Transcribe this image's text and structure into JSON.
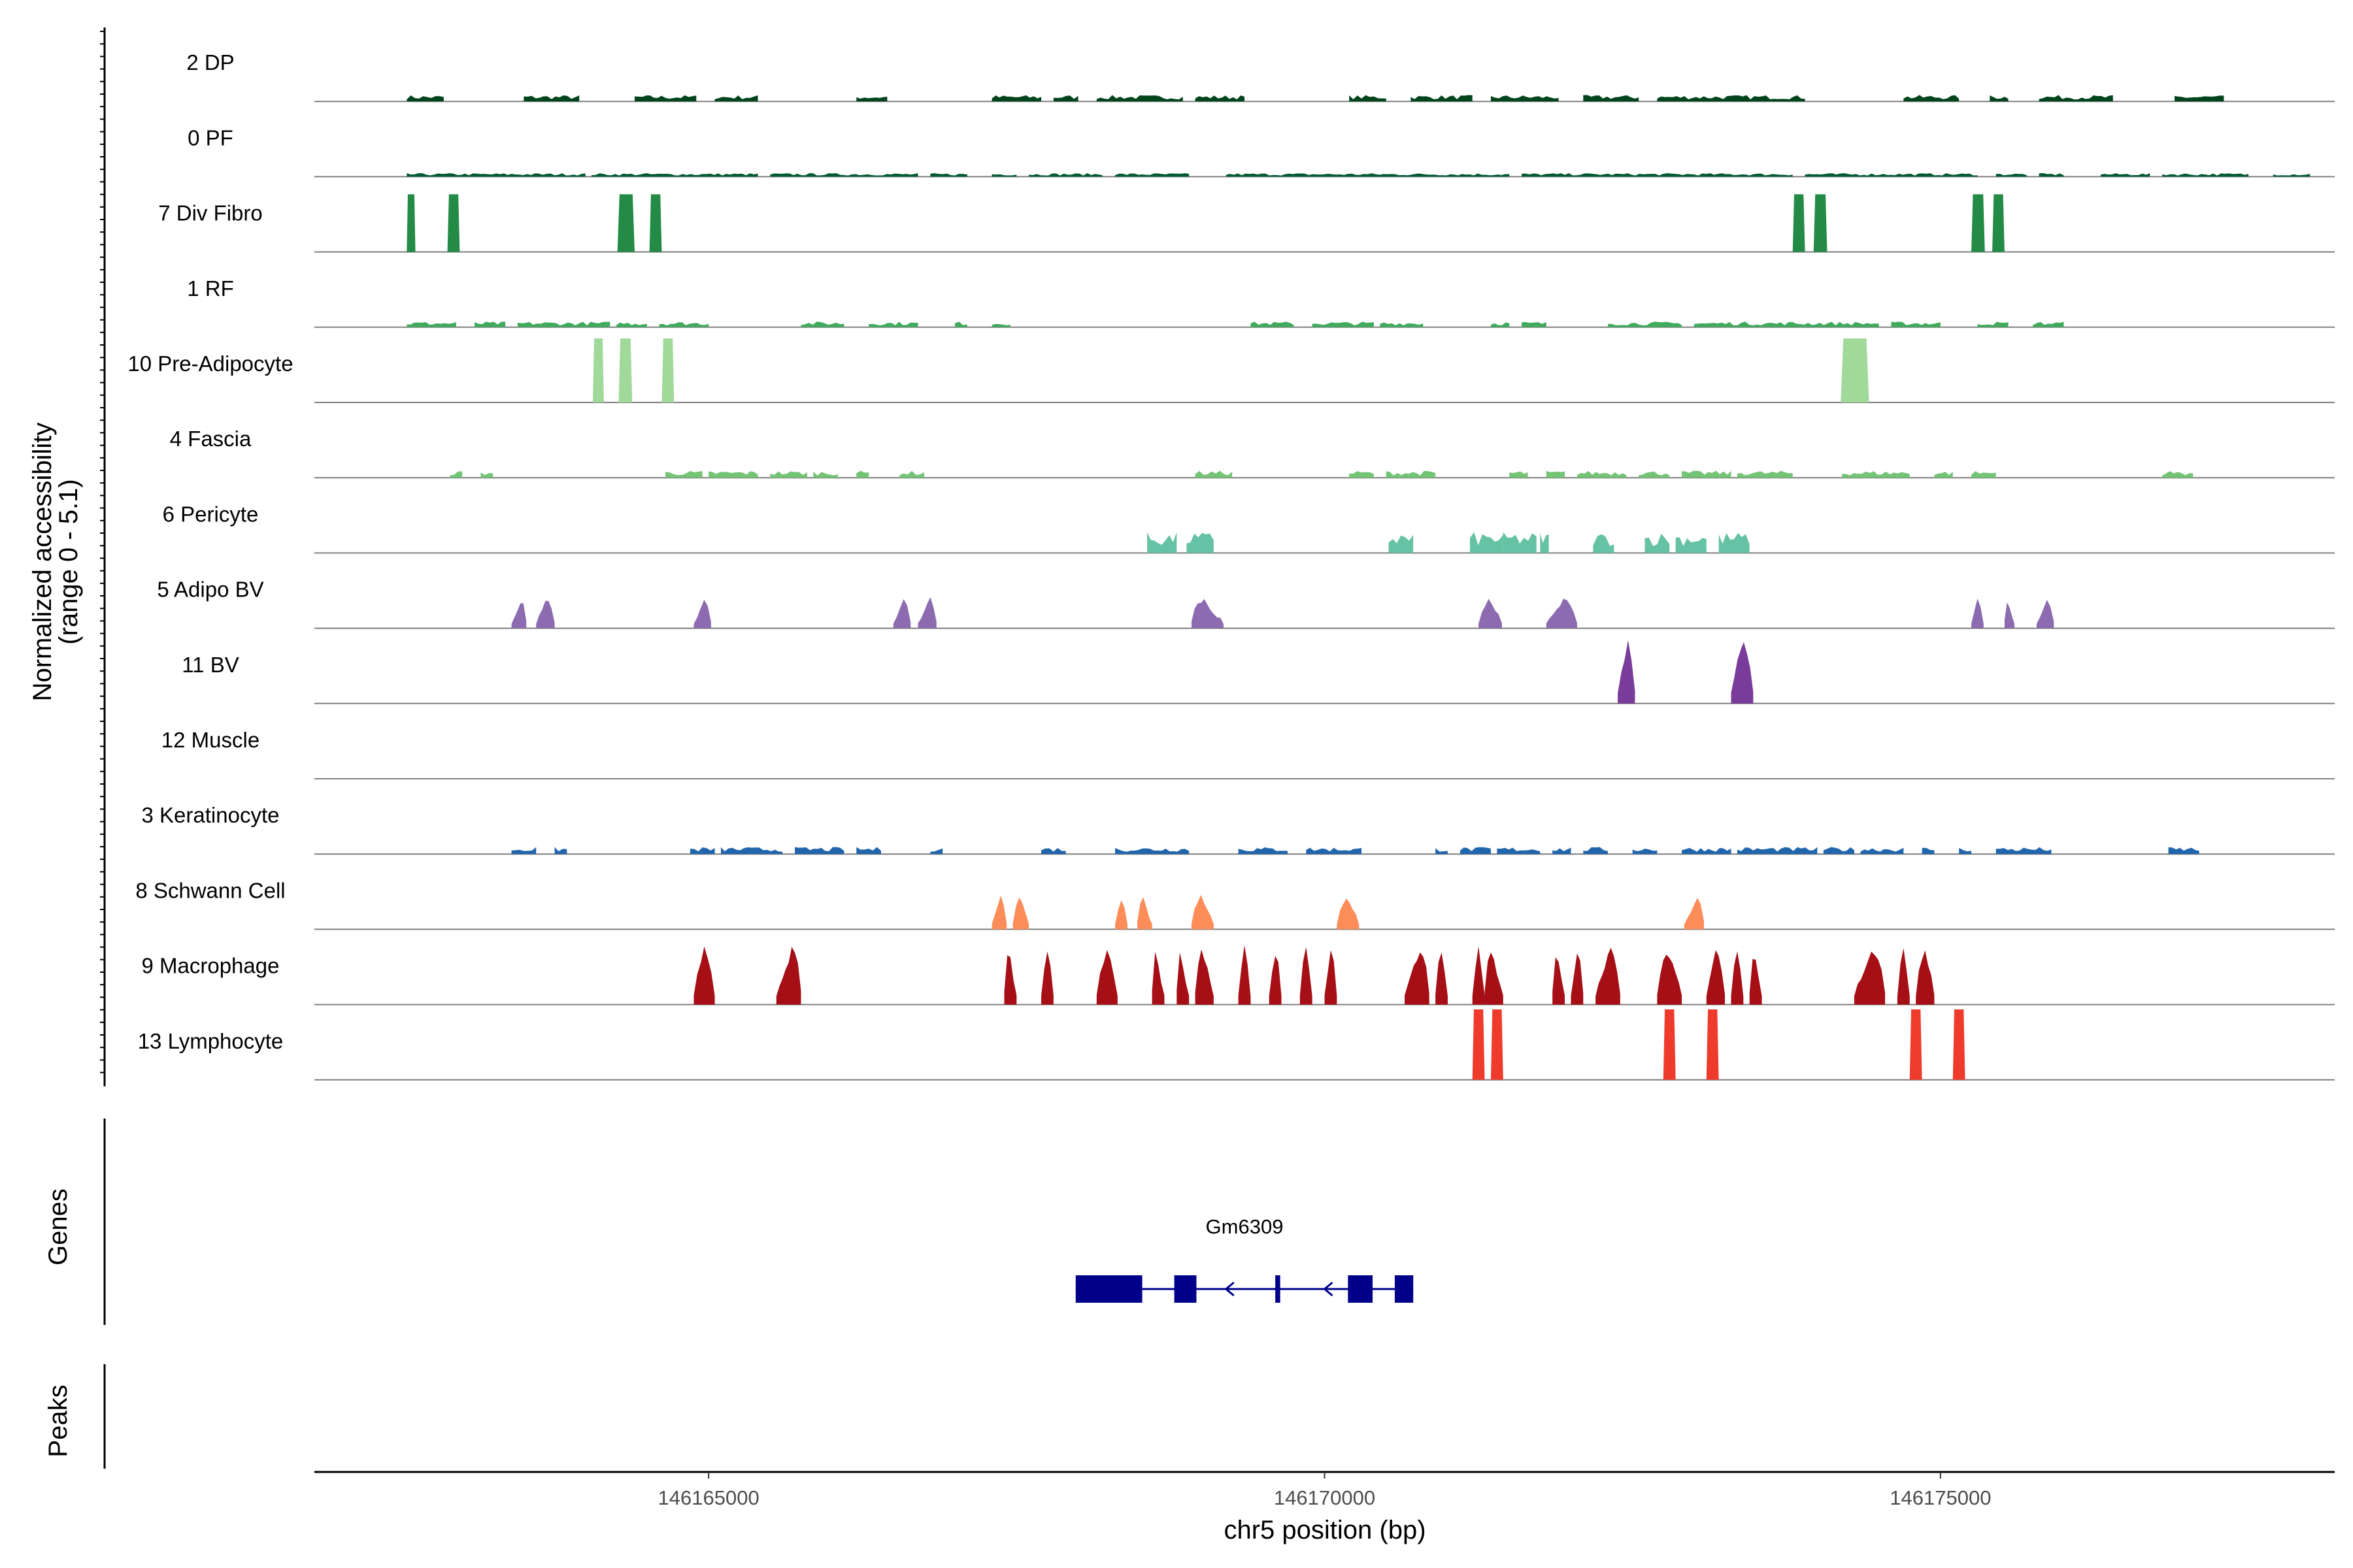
{
  "chart_data": {
    "type": "coverage",
    "region": {
      "chrom": "chr5",
      "start": 146161800,
      "end": 146178200
    },
    "x_axis": {
      "label": "chr5 position (bp)",
      "ticks": [
        146165000,
        146170000,
        146175000
      ],
      "tick_labels": [
        "146165000",
        "146170000",
        "146175000"
      ]
    },
    "y_axis": {
      "label_line1": "Normalized accessibility",
      "label_line2": "(range 0 - 5.1)",
      "range": [
        0,
        5.1
      ]
    },
    "genes_label": "Genes",
    "peaks_label": "Peaks",
    "gene": {
      "name": "Gm6309",
      "start": 146167980,
      "end": 146170720,
      "strand": "-",
      "exons": [
        [
          146167980,
          146168520
        ],
        [
          146168780,
          146168960
        ],
        [
          146169600,
          146169640
        ],
        [
          146170190,
          146170390
        ],
        [
          146170570,
          146170720
        ]
      ],
      "color": "#00008b"
    },
    "tracks": [
      {
        "name": "2 DP",
        "color": "#00441b",
        "style": "noise",
        "level": 0.09,
        "segments": [
          [
            146162550,
            146162850
          ],
          [
            146163500,
            146163950
          ],
          [
            146164400,
            146164900
          ],
          [
            146165050,
            146165400
          ],
          [
            146166200,
            146166450
          ],
          [
            146167300,
            146167700
          ],
          [
            146167800,
            146168000
          ],
          [
            146168150,
            146168850
          ],
          [
            146168950,
            146169350
          ],
          [
            146170200,
            146170500
          ],
          [
            146170700,
            146171200
          ],
          [
            146171350,
            146171900
          ],
          [
            146172100,
            146172550
          ],
          [
            146172700,
            146173900
          ],
          [
            146174700,
            146175150
          ],
          [
            146175400,
            146175550
          ],
          [
            146175800,
            146176400
          ],
          [
            146176900,
            146177300
          ]
        ]
      },
      {
        "name": "0 PF",
        "color": "#005a32",
        "style": "noise",
        "level": 0.05,
        "segments": [
          [
            146162550,
            146164000
          ],
          [
            146164050,
            146165400
          ],
          [
            146165500,
            146166700
          ],
          [
            146166800,
            146167100
          ],
          [
            146167300,
            146167500
          ],
          [
            146167600,
            146168200
          ],
          [
            146168300,
            146168900
          ],
          [
            146169200,
            146171500
          ],
          [
            146171600,
            146173800
          ],
          [
            146173900,
            146175300
          ],
          [
            146175450,
            146175700
          ],
          [
            146175800,
            146176000
          ],
          [
            146176300,
            146176700
          ],
          [
            146176800,
            146177500
          ],
          [
            146177700,
            146178000
          ]
        ]
      },
      {
        "name": "7 Div Fibro",
        "color": "#238b45",
        "style": "block",
        "level": 0.9,
        "segments": [
          [
            146162550,
            146162620
          ],
          [
            146162880,
            146162980
          ],
          [
            146164260,
            146164400
          ],
          [
            146164520,
            146164620
          ],
          [
            146173800,
            146173900
          ],
          [
            146173970,
            146174080
          ],
          [
            146175250,
            146175360
          ],
          [
            146175420,
            146175520
          ]
        ]
      },
      {
        "name": "1 RF",
        "color": "#41ab5d",
        "style": "noise",
        "level": 0.08,
        "segments": [
          [
            146162550,
            146162950
          ],
          [
            146163100,
            146163350
          ],
          [
            146163450,
            146164200
          ],
          [
            146164250,
            146164500
          ],
          [
            146164600,
            146165000
          ],
          [
            146165750,
            146166100
          ],
          [
            146166300,
            146166700
          ],
          [
            146167000,
            146167100
          ],
          [
            146167300,
            146167450
          ],
          [
            146169400,
            146169750
          ],
          [
            146169900,
            146170400
          ],
          [
            146170450,
            146170800
          ],
          [
            146171350,
            146171500
          ],
          [
            146171600,
            146171800
          ],
          [
            146172300,
            146172900
          ],
          [
            146173000,
            146174500
          ],
          [
            146174600,
            146175000
          ],
          [
            146175300,
            146175550
          ],
          [
            146175750,
            146176000
          ]
        ]
      },
      {
        "name": "10 Pre-Adipocyte",
        "color": "#a1d99b",
        "style": "block",
        "level": 1.0,
        "segments": [
          [
            146164060,
            146164150
          ],
          [
            146164270,
            146164380
          ],
          [
            146164620,
            146164720
          ],
          [
            146174190,
            146174420
          ]
        ]
      },
      {
        "name": "4 Fascia",
        "color": "#74c476",
        "style": "noise",
        "level": 0.1,
        "segments": [
          [
            146162900,
            146163000
          ],
          [
            146163150,
            146163250
          ],
          [
            146164650,
            146164950
          ],
          [
            146165000,
            146165400
          ],
          [
            146165500,
            146165800
          ],
          [
            146165850,
            146166050
          ],
          [
            146166200,
            146166300
          ],
          [
            146166550,
            146166750
          ],
          [
            146168950,
            146169250
          ],
          [
            146170200,
            146170400
          ],
          [
            146170500,
            146170900
          ],
          [
            146171500,
            146171650
          ],
          [
            146171800,
            146171950
          ],
          [
            146172050,
            146172450
          ],
          [
            146172550,
            146172800
          ],
          [
            146172900,
            146173300
          ],
          [
            146173350,
            146173800
          ],
          [
            146174200,
            146174750
          ],
          [
            146174950,
            146175100
          ],
          [
            146175250,
            146175450
          ],
          [
            146176800,
            146177050
          ]
        ]
      },
      {
        "name": "6 Pericyte",
        "color": "#66c2a4",
        "style": "noise",
        "level": 0.3,
        "segments": [
          [
            146168560,
            146168800
          ],
          [
            146168880,
            146169100
          ],
          [
            146170520,
            146170720
          ],
          [
            146171180,
            146171450
          ],
          [
            146171450,
            146171720
          ],
          [
            146171750,
            146171820
          ],
          [
            146172180,
            146172350
          ],
          [
            146172600,
            146172800
          ],
          [
            146172850,
            146173100
          ],
          [
            146173200,
            146173450
          ]
        ]
      },
      {
        "name": "5 Adipo BV",
        "color": "#8c6bb1",
        "style": "peak",
        "level": 0.5,
        "segments": [
          [
            146163400,
            146163520
          ],
          [
            146163600,
            146163750
          ],
          [
            146164880,
            146165020
          ],
          [
            146166500,
            146166640
          ],
          [
            146166700,
            146166850
          ],
          [
            146168920,
            146169180
          ],
          [
            146171250,
            146171440
          ],
          [
            146171800,
            146172050
          ],
          [
            146175250,
            146175350
          ],
          [
            146175520,
            146175600
          ],
          [
            146175780,
            146175920
          ]
        ]
      },
      {
        "name": "11 BV",
        "color": "#7a3c9a",
        "style": "peak",
        "level": 1.1,
        "segments": [
          [
            146172380,
            146172520
          ],
          [
            146173300,
            146173480
          ]
        ]
      },
      {
        "name": "12 Muscle",
        "color": "#3f007d",
        "style": "none",
        "level": 0,
        "segments": []
      },
      {
        "name": "3 Keratinocyte",
        "color": "#2166ac",
        "style": "noise",
        "level": 0.1,
        "segments": [
          [
            146163400,
            146163600
          ],
          [
            146163750,
            146163850
          ],
          [
            146164850,
            146165050
          ],
          [
            146165100,
            146165600
          ],
          [
            146165700,
            146166100
          ],
          [
            146166200,
            146166400
          ],
          [
            146166800,
            146166900
          ],
          [
            146167700,
            146167900
          ],
          [
            146168300,
            146168900
          ],
          [
            146169300,
            146169700
          ],
          [
            146169850,
            146170300
          ],
          [
            146170900,
            146171000
          ],
          [
            146171100,
            146171350
          ],
          [
            146171400,
            146171750
          ],
          [
            146171850,
            146172000
          ],
          [
            146172100,
            146172300
          ],
          [
            146172500,
            146172700
          ],
          [
            146172900,
            146173300
          ],
          [
            146173350,
            146174000
          ],
          [
            146174050,
            146174300
          ],
          [
            146174350,
            146174700
          ],
          [
            146174850,
            146174950
          ],
          [
            146175150,
            146175250
          ],
          [
            146175450,
            146175900
          ],
          [
            146176850,
            146177100
          ]
        ]
      },
      {
        "name": "8 Schwann Cell",
        "color": "#fc8d59",
        "style": "peak",
        "level": 0.55,
        "segments": [
          [
            146167300,
            146167420
          ],
          [
            146167470,
            146167600
          ],
          [
            146168300,
            146168400
          ],
          [
            146168480,
            146168600
          ],
          [
            146168920,
            146169100
          ],
          [
            146170100,
            146170280
          ],
          [
            146172920,
            146173080
          ]
        ]
      },
      {
        "name": "9 Macrophage",
        "color": "#a50f15",
        "style": "peak",
        "level": 0.95,
        "segments": [
          [
            146164880,
            146165050
          ],
          [
            146165550,
            146165750
          ],
          [
            146167400,
            146167500
          ],
          [
            146167700,
            146167800
          ],
          [
            146168150,
            146168320
          ],
          [
            146168600,
            146168700
          ],
          [
            146168800,
            146168900
          ],
          [
            146168950,
            146169100
          ],
          [
            146169300,
            146169400
          ],
          [
            146169550,
            146169650
          ],
          [
            146169800,
            146169900
          ],
          [
            146170000,
            146170100
          ],
          [
            146170650,
            146170850
          ],
          [
            146170900,
            146171000
          ],
          [
            146171200,
            146171300
          ],
          [
            146171300,
            146171450
          ],
          [
            146171850,
            146171950
          ],
          [
            146172000,
            146172100
          ],
          [
            146172200,
            146172400
          ],
          [
            146172700,
            146172900
          ],
          [
            146173100,
            146173250
          ],
          [
            146173300,
            146173400
          ],
          [
            146173450,
            146173550
          ],
          [
            146174300,
            146174550
          ],
          [
            146174650,
            146174750
          ],
          [
            146174800,
            146174950
          ]
        ]
      },
      {
        "name": "13 Lymphocyte",
        "color": "#ef3b2c",
        "style": "block",
        "level": 1.1,
        "segments": [
          [
            146171200,
            146171300
          ],
          [
            146171350,
            146171450
          ],
          [
            146172750,
            146172850
          ],
          [
            146173100,
            146173200
          ],
          [
            146174750,
            146174850
          ],
          [
            146175100,
            146175200
          ]
        ]
      }
    ]
  }
}
